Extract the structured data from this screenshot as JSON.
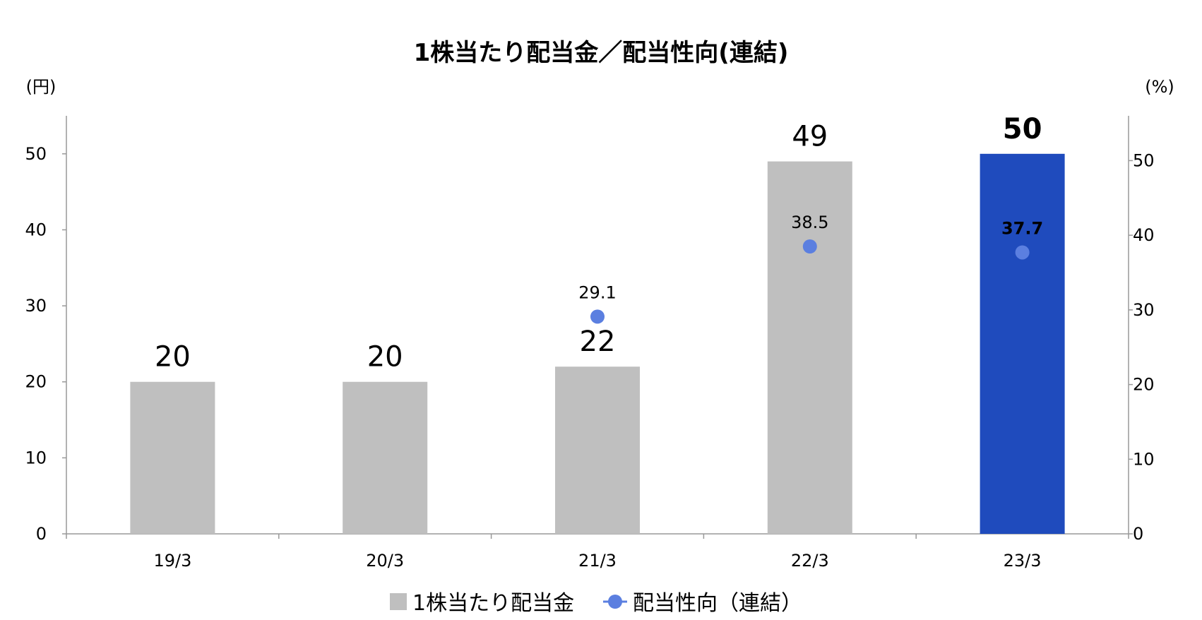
{
  "chart_data": {
    "type": "bar",
    "title": "1株当たり配当金／配当性向(連結)",
    "y_left_unit": "(円)",
    "y_right_unit": "(%)",
    "categories": [
      "19/3",
      "20/3",
      "21/3",
      "22/3",
      "23/3"
    ],
    "y_left_ticks": [
      "0",
      "10",
      "20",
      "30",
      "40",
      "50"
    ],
    "y_right_ticks": [
      "0",
      "10",
      "20",
      "30",
      "40",
      "50"
    ],
    "ylim_left": [
      0,
      55
    ],
    "ylim_right": [
      0,
      56
    ],
    "series": [
      {
        "name": "1株当たり配当金",
        "type": "bar",
        "axis": "left",
        "values": [
          20,
          20,
          22,
          49,
          50
        ],
        "labels": [
          "20",
          "20",
          "22",
          "49",
          "50"
        ],
        "color": "#bfbfbf",
        "highlight_index": 4,
        "highlight_color": "#1f4bbd"
      },
      {
        "name": "配当性向（連結）",
        "type": "scatter",
        "axis": "right",
        "values": [
          null,
          null,
          29.1,
          38.5,
          37.7
        ],
        "labels": [
          "",
          "",
          "29.1",
          "38.5",
          "37.7"
        ],
        "color": "#5b7fe0",
        "highlight_label_color": "#a6a6a6"
      }
    ],
    "legend": {
      "position": "bottom",
      "items": [
        "1株当たり配当金",
        "配当性向（連結）"
      ]
    },
    "grid": false
  }
}
